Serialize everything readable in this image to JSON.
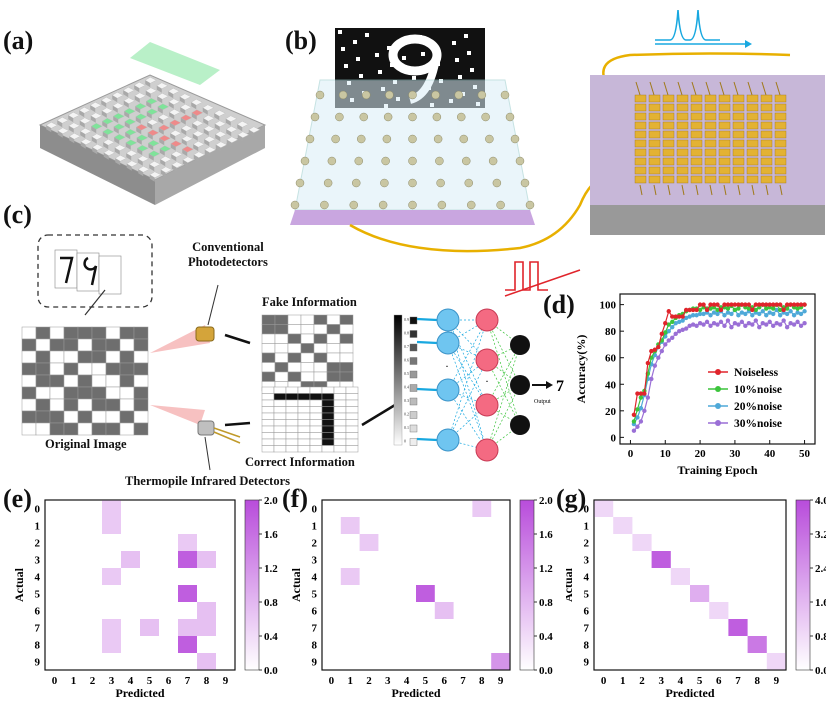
{
  "panels": {
    "a": "(a)",
    "b": "(b)",
    "c": "(c)",
    "d": "(d)",
    "e": "(e)",
    "f": "(f)",
    "g": "(g)"
  },
  "panel_c": {
    "conventional": [
      "Conventional",
      "Photodetectors"
    ],
    "fake_information": "Fake Information",
    "original_image": "Original Image",
    "correct_information": "Correct Information",
    "thermopile": "Thermopile  Infrared Detectors",
    "output_value": "7",
    "output_label": "Output",
    "scale_labels": [
      "0.9",
      "0.8",
      "0.7",
      "0.6",
      "0.5",
      "0.4",
      "0.3",
      "0.2",
      "0.1",
      "0"
    ]
  },
  "colors": {
    "noiseless": "#e0242b",
    "noise10": "#3cc43c",
    "noise20": "#4fa9d8",
    "noise30": "#9a6fd6",
    "confusion_max": "#b84cdb",
    "gold": "#e8b000",
    "red_signal": "#e0242b",
    "cyan_signal": "#18a8e0"
  },
  "chart_data": [
    {
      "type": "line",
      "xlabel": "Training Epoch",
      "ylabel": "Accuracy(%)",
      "xlim": [
        -3,
        53
      ],
      "ylim": [
        -5,
        108
      ],
      "xticks": [
        0,
        10,
        20,
        30,
        40,
        50
      ],
      "yticks": [
        0,
        20,
        40,
        60,
        80,
        100
      ],
      "legend_placement": "bottom-right",
      "x": [
        1,
        2,
        3,
        4,
        5,
        6,
        7,
        8,
        9,
        10,
        11,
        12,
        13,
        14,
        15,
        16,
        17,
        18,
        19,
        20,
        21,
        22,
        23,
        24,
        25,
        26,
        27,
        28,
        29,
        30,
        31,
        32,
        33,
        34,
        35,
        36,
        37,
        38,
        39,
        40,
        41,
        42,
        43,
        44,
        45,
        46,
        47,
        48,
        49,
        50
      ],
      "series": [
        {
          "name": "Noiseless",
          "marker": "circle",
          "values": [
            17,
            33,
            33,
            33,
            56,
            65,
            66,
            68,
            78,
            86,
            95,
            91,
            91,
            91,
            91,
            96,
            96,
            96,
            96,
            100,
            100,
            96,
            100,
            100,
            100,
            96,
            100,
            100,
            100,
            100,
            100,
            100,
            100,
            100,
            96,
            100,
            100,
            100,
            100,
            100,
            100,
            100,
            100,
            96,
            100,
            100,
            100,
            100,
            100,
            100
          ]
        },
        {
          "name": "10%noise",
          "marker": "circle",
          "values": [
            12,
            21,
            30,
            35,
            48,
            60,
            65,
            70,
            73,
            79,
            85,
            87,
            90,
            92,
            93,
            95,
            96,
            97,
            97,
            96,
            98,
            97,
            97,
            98,
            96,
            98,
            98,
            97,
            99,
            96,
            97,
            100,
            98,
            97,
            98,
            96,
            98,
            100,
            97,
            98,
            97,
            100,
            96,
            98,
            97,
            100,
            98,
            97,
            98,
            100
          ]
        },
        {
          "name": "20%noise",
          "marker": "circle",
          "values": [
            10,
            15,
            22,
            32,
            44,
            55,
            62,
            68,
            72,
            76,
            80,
            83,
            86,
            87,
            88,
            90,
            91,
            92,
            92,
            93,
            93,
            94,
            92,
            94,
            93,
            95,
            92,
            94,
            93,
            96,
            92,
            94,
            93,
            95,
            92,
            94,
            93,
            95,
            92,
            94,
            93,
            96,
            92,
            94,
            93,
            95,
            92,
            94,
            93,
            95
          ]
        },
        {
          "name": "30%noise",
          "marker": "circle",
          "values": [
            5,
            8,
            12,
            20,
            30,
            44,
            54,
            60,
            65,
            70,
            73,
            75,
            78,
            80,
            81,
            82,
            84,
            85,
            84,
            86,
            85,
            87,
            84,
            86,
            85,
            87,
            84,
            88,
            83,
            86,
            85,
            87,
            84,
            86,
            85,
            88,
            83,
            86,
            85,
            87,
            84,
            86,
            85,
            88,
            83,
            86,
            85,
            87,
            84,
            86
          ]
        }
      ]
    },
    {
      "type": "heatmap",
      "xlabel": "Predicted",
      "ylabel": "Actual",
      "x_categories": [
        "0",
        "1",
        "2",
        "3",
        "4",
        "5",
        "6",
        "7",
        "8",
        "9"
      ],
      "y_categories": [
        "0",
        "1",
        "2",
        "3",
        "4",
        "5",
        "6",
        "7",
        "8",
        "9"
      ],
      "colorbar_ticks": [
        "0.0",
        "0.4",
        "0.8",
        "1.2",
        "1.6",
        "2.0"
      ],
      "vmin": 0,
      "vmax": 2,
      "cells": [
        [
          0,
          3,
          0.6
        ],
        [
          1,
          3,
          0.6
        ],
        [
          2,
          7,
          0.6
        ],
        [
          3,
          4,
          0.7
        ],
        [
          3,
          7,
          1.8
        ],
        [
          3,
          8,
          0.7
        ],
        [
          4,
          3,
          0.6
        ],
        [
          5,
          7,
          1.8
        ],
        [
          6,
          8,
          0.7
        ],
        [
          7,
          3,
          0.6
        ],
        [
          7,
          5,
          0.7
        ],
        [
          7,
          7,
          0.7
        ],
        [
          7,
          8,
          0.7
        ],
        [
          8,
          3,
          0.6
        ],
        [
          8,
          7,
          1.8
        ],
        [
          9,
          8,
          0.7
        ]
      ]
    },
    {
      "type": "heatmap",
      "xlabel": "Predicted",
      "ylabel": "Actual",
      "x_categories": [
        "0",
        "1",
        "2",
        "3",
        "4",
        "5",
        "6",
        "7",
        "8",
        "9"
      ],
      "y_categories": [
        "0",
        "1",
        "2",
        "3",
        "4",
        "5",
        "6",
        "7",
        "8",
        "9"
      ],
      "colorbar_ticks": [
        "0.0",
        "0.4",
        "0.8",
        "1.2",
        "1.6",
        "2.0"
      ],
      "vmin": 0,
      "vmax": 2,
      "cells": [
        [
          0,
          8,
          0.6
        ],
        [
          1,
          1,
          0.6
        ],
        [
          2,
          2,
          0.6
        ],
        [
          4,
          1,
          0.6
        ],
        [
          5,
          5,
          1.8
        ],
        [
          6,
          6,
          0.7
        ],
        [
          9,
          9,
          1.2
        ]
      ]
    },
    {
      "type": "heatmap",
      "xlabel": "Predicted",
      "ylabel": "Actual",
      "x_categories": [
        "0",
        "1",
        "2",
        "3",
        "4",
        "5",
        "6",
        "7",
        "8",
        "9"
      ],
      "y_categories": [
        "0",
        "1",
        "2",
        "3",
        "4",
        "5",
        "6",
        "7",
        "8",
        "9"
      ],
      "colorbar_ticks": [
        "0.0",
        "0.8",
        "1.6",
        "2.4",
        "3.2",
        "4.0"
      ],
      "vmin": 0,
      "vmax": 4,
      "cells": [
        [
          0,
          0,
          0.9
        ],
        [
          1,
          1,
          0.9
        ],
        [
          2,
          2,
          0.9
        ],
        [
          3,
          3,
          3.6
        ],
        [
          4,
          4,
          0.9
        ],
        [
          5,
          5,
          1.8
        ],
        [
          6,
          6,
          0.9
        ],
        [
          7,
          7,
          3.6
        ],
        [
          8,
          8,
          3.0
        ],
        [
          9,
          9,
          0.9
        ]
      ]
    }
  ]
}
